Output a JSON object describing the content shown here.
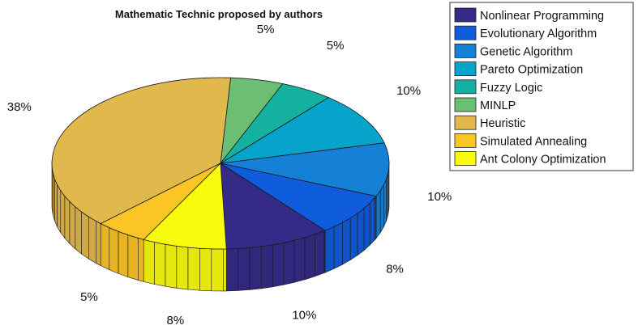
{
  "chart_data": {
    "type": "pie",
    "style": "3d",
    "title": "Mathematic Technic proposed by authors",
    "legend_position": "top-right",
    "slices": [
      {
        "name": "Nonlinear Programming",
        "value": 10,
        "label": "10%",
        "color": "#352a87"
      },
      {
        "name": "Evolutionary Algorithm",
        "value": 8,
        "label": "8%",
        "color": "#0f5cdd"
      },
      {
        "name": "Genetic Algorithm",
        "value": 10,
        "label": "10%",
        "color": "#1481d6"
      },
      {
        "name": "Pareto Optimization",
        "value": 10,
        "label": "10%",
        "color": "#06a4ca"
      },
      {
        "name": "Fuzzy Logic",
        "value": 5,
        "label": "5%",
        "color": "#15b1a0"
      },
      {
        "name": "MINLP",
        "value": 5,
        "label": "5%",
        "color": "#6cbe72"
      },
      {
        "name": "Heuristic",
        "value": 38,
        "label": "38%",
        "color": "#e0b84c"
      },
      {
        "name": "Simulated Annealing",
        "value": 5,
        "label": "5%",
        "color": "#fbc526"
      },
      {
        "name": "Ant Colony Optimization",
        "value": 8,
        "label": "8%",
        "color": "#f9fb0e"
      }
    ]
  }
}
